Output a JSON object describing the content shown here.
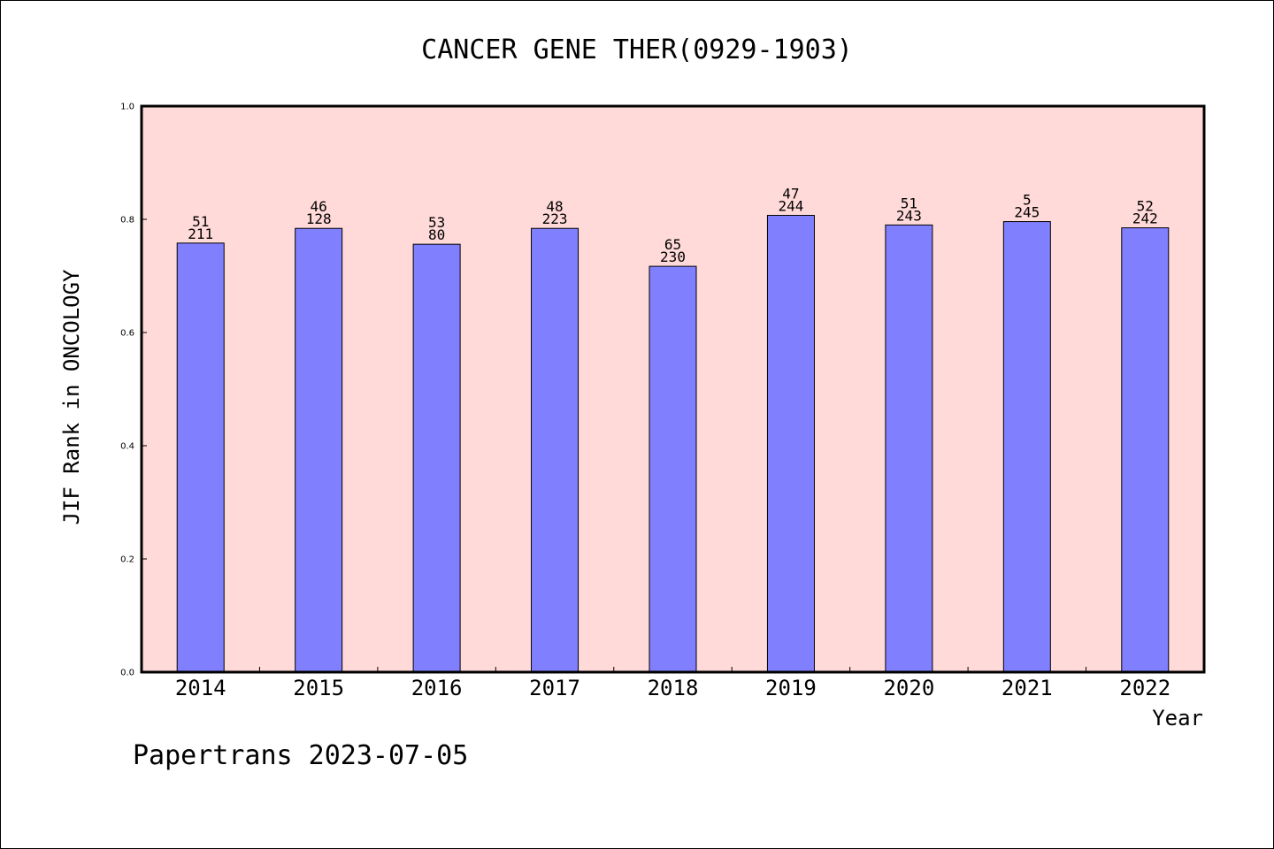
{
  "chart_data": {
    "type": "bar",
    "title": "CANCER GENE THER(0929-1903)",
    "xlabel": "Year",
    "ylabel": "JIF Rank in ONCOLOGY",
    "ylim": [
      0,
      1.0
    ],
    "yticks": [
      "0.0",
      "0.2",
      "0.4",
      "0.6",
      "0.8",
      "1.0"
    ],
    "categories": [
      "2014",
      "2015",
      "2016",
      "2017",
      "2018",
      "2019",
      "2020",
      "2021",
      "2022"
    ],
    "values": [
      0.758,
      0.784,
      0.756,
      0.784,
      0.717,
      0.807,
      0.79,
      0.796,
      0.785
    ],
    "labels_top": [
      "51",
      "46",
      "53",
      "48",
      "65",
      "47",
      "51",
      "5",
      "52"
    ],
    "labels_bottom": [
      "211",
      "128",
      "80",
      "223",
      "230",
      "244",
      "243",
      "245",
      "242"
    ],
    "grid": false,
    "colors": {
      "plot_bg": "#ffdad8",
      "bar": "#8080ff",
      "bar_edge": "#000000"
    }
  },
  "footer": "Papertrans 2023-07-05"
}
